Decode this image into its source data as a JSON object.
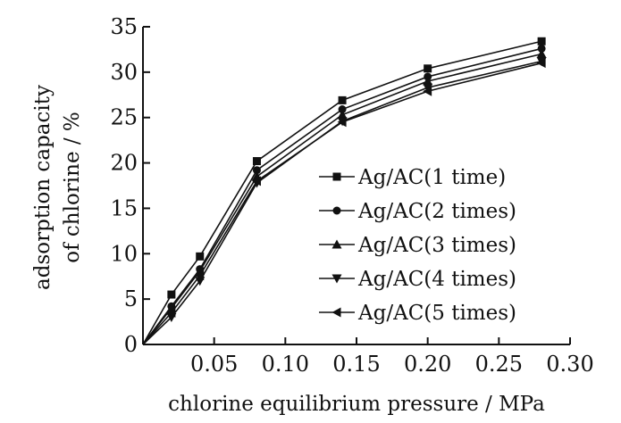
{
  "chart_data": {
    "type": "line",
    "xlabel": "chlorine equilibrium pressure / MPa",
    "ylabel_lines": [
      "adsorption capacity",
      "of chlorine / %"
    ],
    "xlim": [
      0,
      0.3
    ],
    "ylim": [
      0,
      35
    ],
    "x_ticks": [
      0.05,
      0.1,
      0.15,
      0.2,
      0.25,
      0.3
    ],
    "x_tick_labels": [
      "0.05",
      "0.10",
      "0.15",
      "0.20",
      "0.25",
      "0.30"
    ],
    "y_ticks": [
      0,
      5,
      10,
      15,
      20,
      25,
      30,
      35
    ],
    "y_tick_labels": [
      "0",
      "5",
      "10",
      "15",
      "20",
      "25",
      "30",
      "35"
    ],
    "grid": false,
    "legend_position": "right",
    "x": [
      0,
      0.02,
      0.04,
      0.08,
      0.14,
      0.2,
      0.28
    ],
    "series": [
      {
        "name": "Ag/AC(1 time)",
        "marker": "square",
        "values": [
          0,
          5.5,
          9.7,
          20.2,
          26.9,
          30.4,
          33.4
        ]
      },
      {
        "name": "Ag/AC(2 times)",
        "marker": "circle",
        "values": [
          0,
          4.2,
          8.3,
          19.2,
          25.9,
          29.5,
          32.6
        ]
      },
      {
        "name": "Ag/AC(3 times)",
        "marker": "triangle-up",
        "values": [
          0,
          4.0,
          8.1,
          18.5,
          25.3,
          29.0,
          32.0
        ]
      },
      {
        "name": "Ag/AC(4 times)",
        "marker": "triangle-down",
        "values": [
          0,
          3.0,
          7.0,
          17.8,
          24.6,
          28.3,
          31.2
        ]
      },
      {
        "name": "Ag/AC(5 times)",
        "marker": "triangle-left",
        "values": [
          0,
          3.5,
          7.6,
          18.0,
          24.5,
          27.9,
          31.0
        ]
      }
    ]
  }
}
